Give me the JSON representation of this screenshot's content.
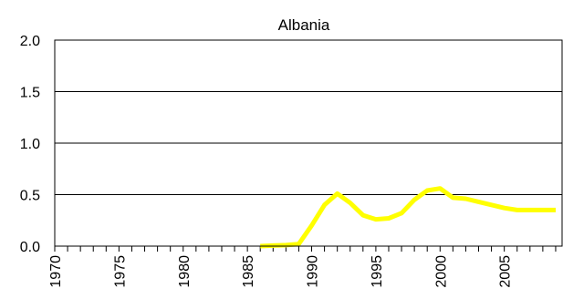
{
  "chart_data": {
    "type": "line",
    "title": "Albania",
    "xlabel": "",
    "ylabel": "",
    "xlim": [
      1970,
      2009
    ],
    "ylim": [
      0,
      2.0
    ],
    "yticks": [
      "0.0",
      "0.5",
      "1.0",
      "1.5",
      "2.0"
    ],
    "xticks": [
      "1970",
      "1975",
      "1980",
      "1985",
      "1990",
      "1995",
      "2000",
      "2005"
    ],
    "grid": "horizontal",
    "legend": "none",
    "series": [
      {
        "color": "#ffff00",
        "x": [
          1986,
          1987,
          1988,
          1989,
          1990,
          1991,
          1992,
          1993,
          1994,
          1995,
          1996,
          1997,
          1998,
          1999,
          2000,
          2001,
          2002,
          2003,
          2004,
          2005,
          2006,
          2007,
          2008,
          2009
        ],
        "y": [
          0.0,
          0.005,
          0.01,
          0.02,
          0.2,
          0.4,
          0.51,
          0.42,
          0.3,
          0.26,
          0.27,
          0.32,
          0.45,
          0.54,
          0.56,
          0.47,
          0.46,
          0.43,
          0.4,
          0.37,
          0.35,
          0.35,
          0.35,
          0.35
        ]
      }
    ]
  }
}
